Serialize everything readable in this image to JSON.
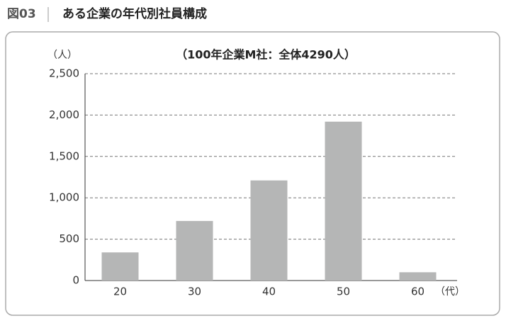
{
  "figure_label": "図03",
  "chart_data": {
    "type": "bar",
    "title": "ある企業の年代別社員構成",
    "subtitle": "（100年企業M社：全体4290人）",
    "y_unit": "（人）",
    "x_unit": "（代）",
    "categories": [
      "20",
      "30",
      "40",
      "50",
      "60"
    ],
    "values": [
      340,
      720,
      1210,
      1920,
      100
    ],
    "color": "#b5b6b6",
    "ylim": [
      0,
      2500
    ],
    "yticks": [
      0,
      500,
      {
        "value": 1000,
        "label": "1,000"
      },
      {
        "value": 1500,
        "label": "1,500"
      },
      {
        "value": 2000,
        "label": "2,000"
      },
      {
        "value": 2500,
        "label": "2,500"
      }
    ],
    "grid": true
  }
}
